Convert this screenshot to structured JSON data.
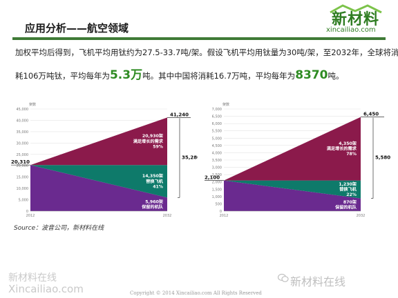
{
  "header": {
    "title": "应用分析——航空领域"
  },
  "logo": {
    "main": "新材料",
    "sub": "xincailiao.com"
  },
  "body": {
    "line1": "加权平均后得到，飞机平均用钛约为27.5-33.7吨/架。假设飞机平均用钛量为30吨/架，至2032年，全球将消",
    "line2_pre": "耗106万吨钛，平均每年为",
    "line2_hl1": "5.3万",
    "line2_mid": "吨。其中中国将消耗16.7万吨，平均每年为",
    "line2_hl2": "8370",
    "line2_post": "吨。"
  },
  "colors": {
    "growth": "#8b1a4b",
    "replace": "#0e7a6a",
    "retained": "#6a2a8f",
    "accent": "#3f7a36"
  },
  "chart_data": [
    {
      "type": "area",
      "ylabel": "架数",
      "x": [
        "2012",
        "2032"
      ],
      "ylim": [
        0,
        45000
      ],
      "yticks": [
        "0",
        "5,000",
        "10,000",
        "15,000",
        "20,000",
        "25,000",
        "30,000",
        "35,000",
        "40,000",
        "45,000"
      ],
      "series": [
        {
          "values": [
            20310,
            5960
          ],
          "label": [
            "5,960架",
            "保留的机队"
          ]
        },
        {
          "values": [
            0,
            14350
          ],
          "label": [
            "14,350架",
            "替换飞机",
            "41%"
          ]
        },
        {
          "values": [
            0,
            20930
          ],
          "label": [
            "20,930架",
            "满足增长的需求",
            "59%"
          ]
        }
      ],
      "annotations": {
        "start": "20,310",
        "total": "41,240",
        "new_total": "35,280"
      }
    },
    {
      "type": "area",
      "ylabel": "架数",
      "x": [
        "2012",
        "2032"
      ],
      "ylim": [
        0,
        7000
      ],
      "yticks": [
        "0",
        "500",
        "1,000",
        "1,500",
        "2,000",
        "2,500",
        "3,000",
        "3,500",
        "4,000",
        "4,500",
        "5,000",
        "5,500",
        "6,000",
        "6,500",
        "7,000"
      ],
      "series": [
        {
          "values": [
            2100,
            870
          ],
          "label": [
            "870架",
            "保留的机队"
          ]
        },
        {
          "values": [
            0,
            1230
          ],
          "label": [
            "1,230架",
            "替换飞机",
            "22%"
          ]
        },
        {
          "values": [
            0,
            4350
          ],
          "label": [
            "4,350架",
            "满足增长的需求",
            "78%"
          ]
        }
      ],
      "annotations": {
        "start": "2,100",
        "total": "6,450",
        "new_total": "5,580"
      }
    }
  ],
  "source": "Source：波音公司，新材料在线",
  "footer": {
    "wm_left1": "新材料在线",
    "wm_left2": "Xincailiao.com",
    "copyright": "Copyright © 2014 Xincailiao.com All Rights Reserved",
    "wm_right": "新材料在线",
    "wechat_icon": "wechat-icon"
  }
}
